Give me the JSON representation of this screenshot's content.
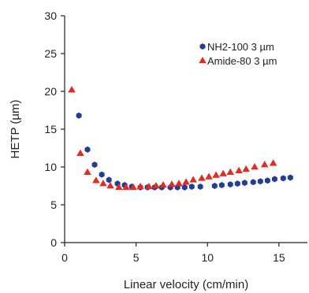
{
  "chart_data": {
    "type": "scatter",
    "xlabel": "Linear velocity (cm/min)",
    "ylabel": "HETP (µm)",
    "xlim": [
      0,
      16
    ],
    "ylim": [
      0,
      30
    ],
    "x_ticks": [
      0,
      5,
      10,
      15
    ],
    "y_ticks": [
      0,
      5,
      10,
      15,
      20,
      25,
      30
    ],
    "grid": false,
    "legend_position": "top-right",
    "series": [
      {
        "name": "NH2-100 3 µm",
        "marker": "hexagon",
        "color": "#1f3d99",
        "points": [
          [
            1.0,
            16.8
          ],
          [
            1.6,
            12.3
          ],
          [
            2.1,
            10.3
          ],
          [
            2.6,
            9.0
          ],
          [
            3.1,
            8.3
          ],
          [
            3.7,
            7.8
          ],
          [
            4.2,
            7.6
          ],
          [
            4.7,
            7.4
          ],
          [
            5.3,
            7.3
          ],
          [
            5.8,
            7.3
          ],
          [
            6.3,
            7.3
          ],
          [
            6.8,
            7.3
          ],
          [
            7.4,
            7.3
          ],
          [
            7.9,
            7.3
          ],
          [
            8.4,
            7.3
          ],
          [
            8.9,
            7.4
          ],
          [
            9.5,
            7.4
          ],
          [
            10.5,
            7.5
          ],
          [
            11.0,
            7.6
          ],
          [
            11.6,
            7.7
          ],
          [
            12.1,
            7.8
          ],
          [
            12.6,
            7.9
          ],
          [
            13.2,
            8.0
          ],
          [
            13.7,
            8.1
          ],
          [
            14.2,
            8.2
          ],
          [
            14.7,
            8.4
          ],
          [
            15.3,
            8.5
          ],
          [
            15.8,
            8.6
          ]
        ]
      },
      {
        "name": "Amide-80 3 µm",
        "marker": "triangle",
        "color": "#e52a1f",
        "points": [
          [
            0.5,
            20.2
          ],
          [
            1.1,
            11.8
          ],
          [
            1.6,
            9.3
          ],
          [
            2.2,
            8.2
          ],
          [
            2.7,
            7.8
          ],
          [
            3.2,
            7.5
          ],
          [
            3.8,
            7.3
          ],
          [
            4.3,
            7.3
          ],
          [
            4.8,
            7.3
          ],
          [
            5.3,
            7.4
          ],
          [
            5.9,
            7.4
          ],
          [
            6.4,
            7.5
          ],
          [
            6.9,
            7.6
          ],
          [
            7.5,
            7.7
          ],
          [
            8.0,
            7.8
          ],
          [
            8.5,
            8.0
          ],
          [
            9.0,
            8.3
          ],
          [
            9.6,
            8.5
          ],
          [
            10.1,
            8.7
          ],
          [
            10.6,
            8.9
          ],
          [
            11.1,
            9.1
          ],
          [
            11.6,
            9.3
          ],
          [
            12.2,
            9.5
          ],
          [
            12.7,
            9.7
          ],
          [
            13.3,
            10.0
          ],
          [
            14.0,
            10.3
          ],
          [
            14.6,
            10.5
          ]
        ]
      }
    ]
  }
}
